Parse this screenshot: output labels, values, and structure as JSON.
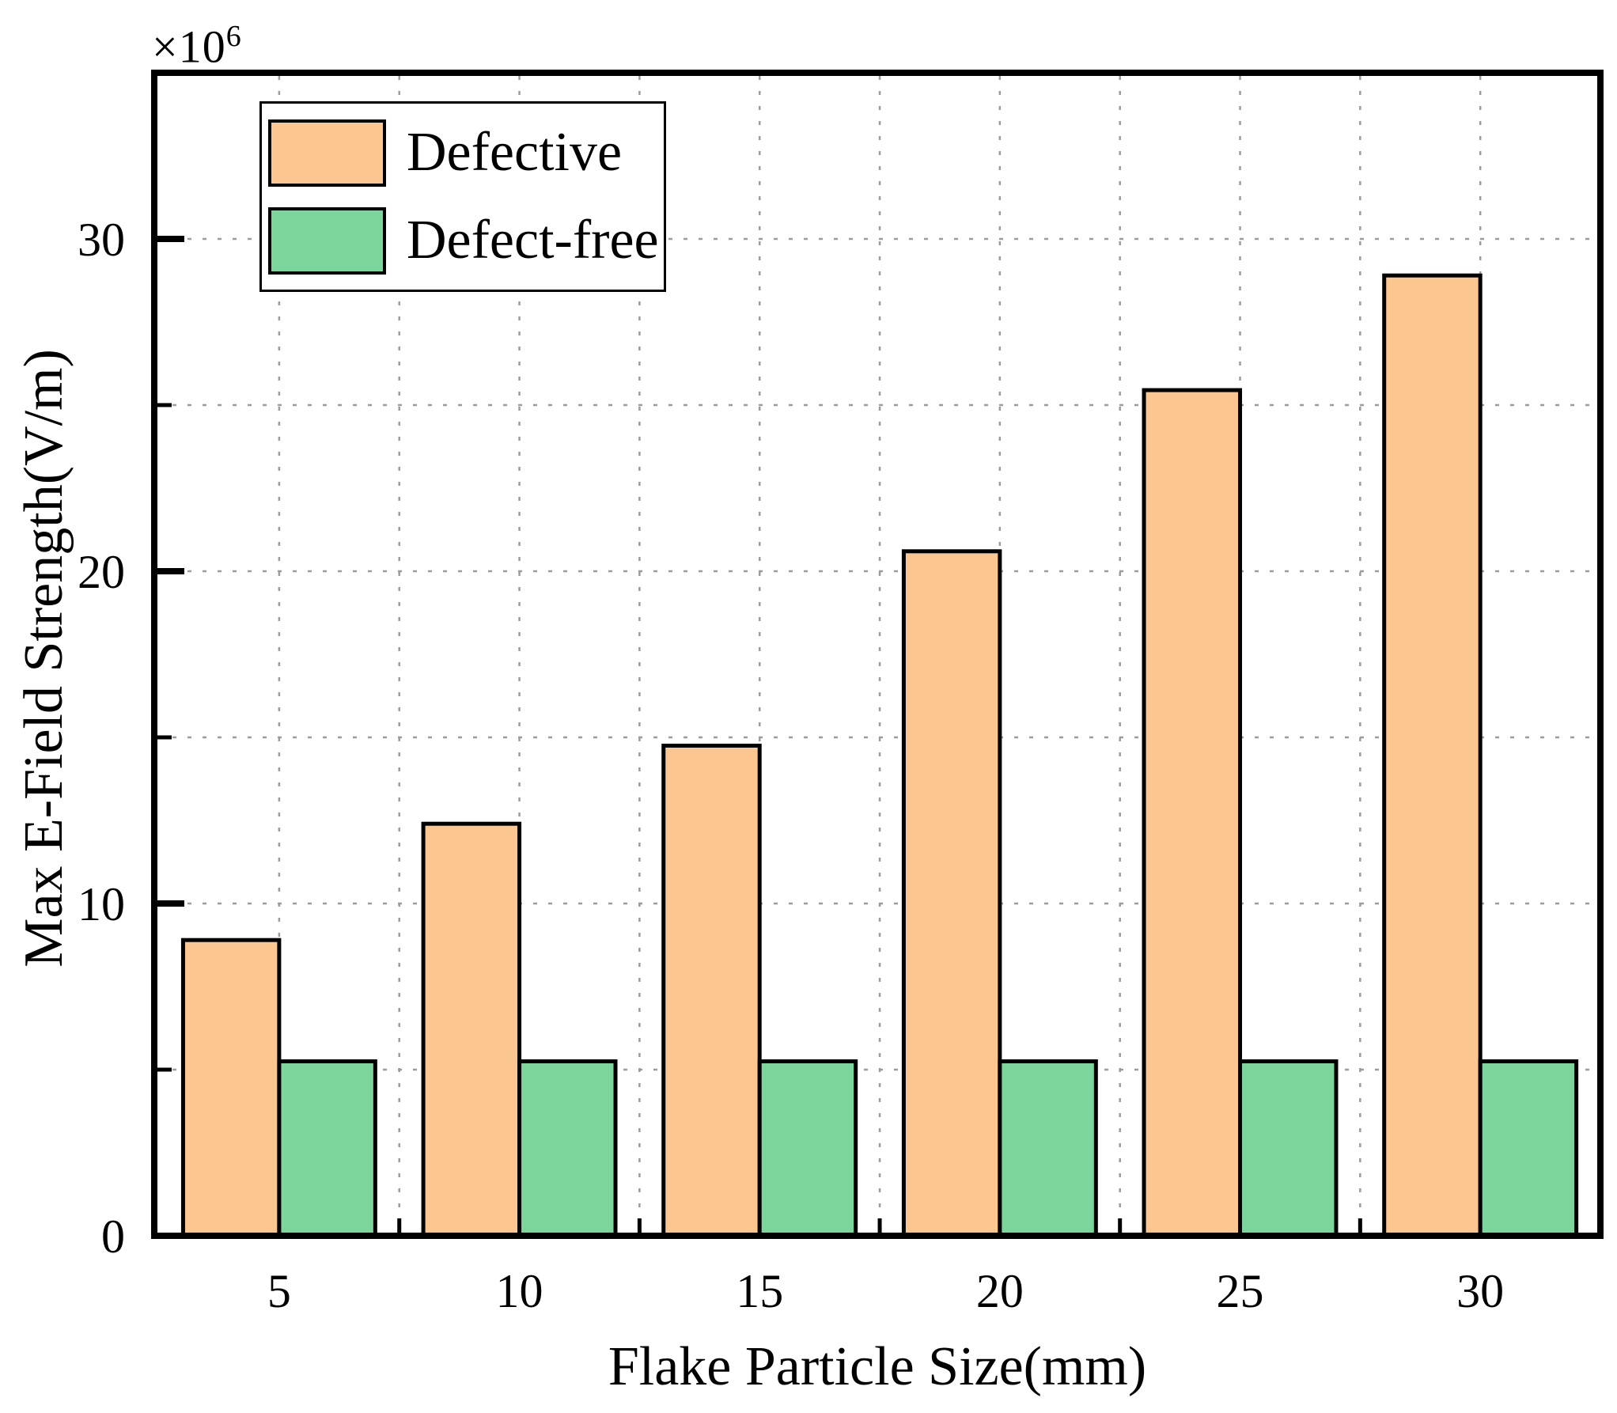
{
  "chart_data": {
    "type": "bar",
    "title": "",
    "xlabel": "Flake Particle Size(mm)",
    "ylabel": "Max E-Field Strength(V/m)",
    "y_offset_base": "×10",
    "y_offset_exp": "6",
    "unit": "×10⁶ V/m",
    "categories": [
      5,
      10,
      15,
      20,
      25,
      30
    ],
    "series": [
      {
        "name": "Defective",
        "color": "#FCC690",
        "values": [
          8.9,
          12.4,
          14.75,
          20.6,
          25.45,
          28.9
        ]
      },
      {
        "name": "Defect-free",
        "color": "#7CD69B",
        "values": [
          5.25,
          5.25,
          5.25,
          5.25,
          5.25,
          5.25
        ]
      }
    ],
    "xlim": [
      2.4,
      32.5
    ],
    "ylim": [
      0,
      35
    ],
    "yticks_major": [
      0,
      10,
      20,
      30
    ],
    "yticks_minor": [
      5,
      15,
      25
    ],
    "xticks_minor": [
      7.5,
      12.5,
      17.5,
      22.5,
      27.5
    ],
    "grid": {
      "show": true,
      "color": "#9C9C9C",
      "x_step": 2.5,
      "y_step": 5
    },
    "bar_width_mm": 2,
    "bar_edge_color": "#000000",
    "axis_color": "#000000",
    "legend": {
      "position": "top-left",
      "entries": [
        "Defective",
        "Defect-free"
      ]
    }
  }
}
